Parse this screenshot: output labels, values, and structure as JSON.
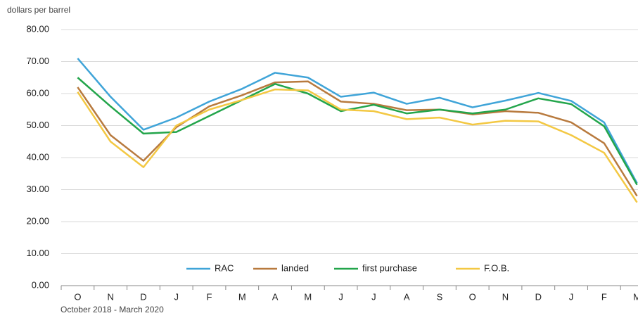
{
  "chart_data": {
    "type": "line",
    "y_label": "dollars per barrel",
    "x_label": "October 2018  -  March 2020",
    "categories": [
      "O",
      "N",
      "D",
      "J",
      "F",
      "M",
      "A",
      "M",
      "J",
      "J",
      "A",
      "S",
      "O",
      "N",
      "D",
      "J",
      "F",
      "M"
    ],
    "series": [
      {
        "name": "RAC",
        "color": "#3fa4d8",
        "values": [
          71,
          59,
          48.7,
          52.5,
          57.5,
          61.5,
          66.5,
          65,
          59,
          60.3,
          56.8,
          58.7,
          55.7,
          57.8,
          60.2,
          57.7,
          51,
          32
        ]
      },
      {
        "name": "landed",
        "color": "#b87a3e",
        "values": [
          62,
          47,
          39,
          49.5,
          56,
          59.5,
          63.5,
          63.8,
          57.5,
          56.8,
          54.8,
          55,
          53.5,
          54.5,
          54,
          51,
          44.5,
          28
        ]
      },
      {
        "name": "first purchase",
        "color": "#23a54b",
        "values": [
          65,
          56,
          47.5,
          48,
          53,
          58,
          63,
          60,
          54.5,
          56.5,
          53.8,
          55,
          53.8,
          55,
          58.5,
          56.7,
          49.8,
          31.5
        ]
      },
      {
        "name": "F.O.B.",
        "color": "#f3c843",
        "values": [
          60.5,
          45,
          37,
          50,
          55,
          58,
          61.3,
          61,
          55,
          54.5,
          52,
          52.5,
          50.3,
          51.5,
          51.3,
          47,
          41.5,
          26
        ]
      }
    ],
    "ylim": [
      0,
      80
    ],
    "yticks": [
      {
        "value": 0,
        "label": "0.00"
      },
      {
        "value": 10,
        "label": "10.00"
      },
      {
        "value": 20,
        "label": "20.00"
      },
      {
        "value": 30,
        "label": "30.00"
      },
      {
        "value": 40,
        "label": "40.00"
      },
      {
        "value": 50,
        "label": "50.00"
      },
      {
        "value": 60,
        "label": "60.00"
      },
      {
        "value": 70,
        "label": "70.00"
      },
      {
        "value": 80,
        "label": "80.00"
      }
    ],
    "grid": true,
    "legend": "bottom"
  }
}
